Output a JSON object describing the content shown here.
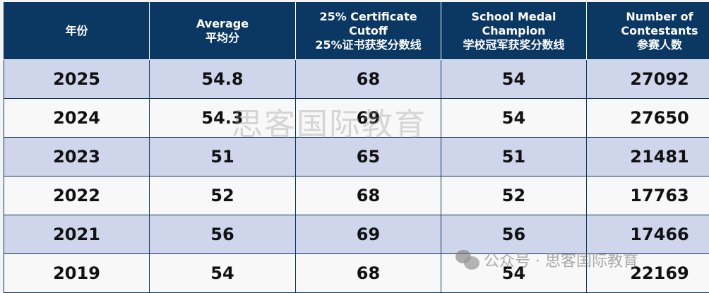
{
  "table": {
    "headers": [
      {
        "line1": "年份",
        "line2": "",
        "line3": ""
      },
      {
        "line1": "Average",
        "line2": "平均分",
        "line3": ""
      },
      {
        "line1": "25% Certificate",
        "line2": "Cutoff",
        "line3": "25%证书获奖分数线"
      },
      {
        "line1": "School Medal",
        "line2": "Champion",
        "line3": "学校冠军获奖分数线"
      },
      {
        "line1": "Number of",
        "line2": "Contestants",
        "line3": "参赛人数"
      }
    ],
    "rows": [
      [
        "2025",
        "54.8",
        "68",
        "54",
        "27092"
      ],
      [
        "2024",
        "54.3",
        "69",
        "54",
        "27650"
      ],
      [
        "2023",
        "51",
        "65",
        "51",
        "21481"
      ],
      [
        "2022",
        "52",
        "68",
        "52",
        "17763"
      ],
      [
        "2021",
        "56",
        "69",
        "56",
        "17466"
      ],
      [
        "2019",
        "54",
        "68",
        "54",
        "22169"
      ]
    ]
  },
  "watermark": {
    "center": "思客国际教育",
    "footer": "公众号 · 思客国际教育",
    "footer_icon": "wechat-icon"
  },
  "colors": {
    "header_bg": "#0b3763",
    "row_odd": "#cfd5ea",
    "row_even": "#f8f8f8"
  }
}
